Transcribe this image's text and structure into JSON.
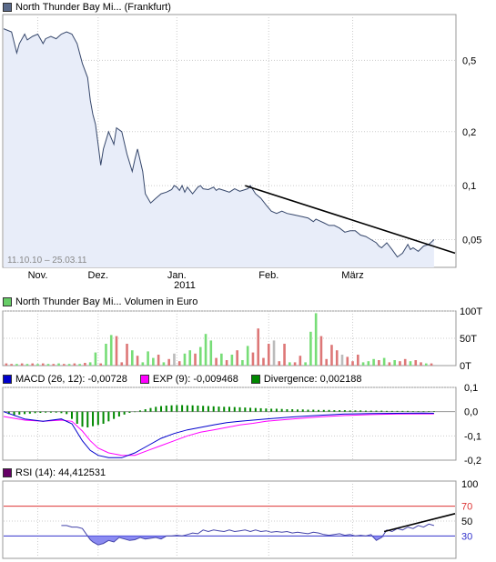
{
  "price_chart": {
    "legend_label": "North Thunder Bay Mi... (Frankfurt)",
    "legend_color": "#5a6a8a",
    "date_range": "11.10.10 – 25.03.11",
    "y_ticks": [
      "0,5",
      "0,2",
      "0,1",
      "0,05"
    ],
    "x_ticks": [
      "Nov.",
      "Dez.",
      "Jan.",
      "Feb.",
      "März"
    ],
    "year_label": "2011",
    "line_color": "#36476b",
    "fill_color": "#e8edf9"
  },
  "volume_chart": {
    "legend_label": "North Thunder Bay Mi... Volumen in Euro",
    "legend_color": "#66cc66",
    "y_ticks": [
      "100T",
      "50T",
      "0T"
    ],
    "up_color": "#77dd77",
    "down_color": "#dd7777",
    "flat_color": "#bbbbbb"
  },
  "macd_chart": {
    "macd_label": "MACD (26, 12): -0,00728",
    "exp_label": "EXP (9): -0,009468",
    "div_label": "Divergence: 0,002188",
    "macd_color": "#0000cc",
    "exp_color": "#ff00ff",
    "div_color": "#008800",
    "y_ticks": [
      "0,1",
      "0,0",
      "-0,1",
      "-0,2"
    ]
  },
  "rsi_chart": {
    "legend_label": "RSI (14): 44,412531",
    "legend_color": "#660066",
    "y_ticks": [
      "100",
      "70",
      "50",
      "30"
    ],
    "line_color": "#4444aa",
    "upper_line_color": "#dd3333",
    "lower_line_color": "#3333cc"
  },
  "chart_data": [
    {
      "type": "line",
      "title": "North Thunder Bay Mi... (Frankfurt)",
      "scale": "log",
      "x_range": [
        "11.10.10",
        "25.03.11"
      ],
      "ylim": [
        0.035,
        0.9
      ],
      "x": [
        0,
        3,
        5,
        6,
        8,
        9,
        11,
        13,
        15,
        16,
        18,
        20,
        22,
        24,
        26,
        28,
        30,
        32,
        33,
        34,
        35,
        36,
        37,
        38,
        40,
        42,
        43,
        45,
        47,
        49,
        50,
        51,
        53,
        54,
        56,
        58,
        60,
        62,
        64,
        65,
        66,
        67,
        68,
        69,
        70,
        72,
        74,
        75,
        76,
        78,
        80,
        81,
        82,
        84,
        86,
        88,
        90,
        92,
        93,
        94,
        96,
        98,
        100,
        102,
        104,
        106,
        108,
        110,
        112,
        114,
        116,
        118,
        119,
        120,
        122,
        124,
        126,
        128,
        130,
        132,
        134,
        136,
        138,
        140,
        142,
        143,
        144,
        146,
        148,
        150,
        152,
        154,
        155,
        156,
        158,
        160,
        162,
        164
      ],
      "y": [
        0.75,
        0.72,
        0.55,
        0.62,
        0.7,
        0.65,
        0.68,
        0.7,
        0.62,
        0.66,
        0.68,
        0.66,
        0.7,
        0.72,
        0.7,
        0.62,
        0.48,
        0.4,
        0.3,
        0.25,
        0.22,
        0.17,
        0.13,
        0.16,
        0.2,
        0.17,
        0.21,
        0.2,
        0.15,
        0.12,
        0.14,
        0.16,
        0.12,
        0.09,
        0.08,
        0.085,
        0.09,
        0.092,
        0.095,
        0.1,
        0.098,
        0.094,
        0.1,
        0.092,
        0.098,
        0.09,
        0.098,
        0.1,
        0.096,
        0.095,
        0.098,
        0.094,
        0.096,
        0.094,
        0.092,
        0.096,
        0.093,
        0.095,
        0.096,
        0.1,
        0.09,
        0.085,
        0.078,
        0.072,
        0.07,
        0.072,
        0.07,
        0.069,
        0.068,
        0.067,
        0.066,
        0.063,
        0.065,
        0.064,
        0.062,
        0.06,
        0.06,
        0.058,
        0.055,
        0.056,
        0.056,
        0.053,
        0.052,
        0.05,
        0.048,
        0.046,
        0.045,
        0.048,
        0.044,
        0.04,
        0.042,
        0.047,
        0.044,
        0.045,
        0.043,
        0.046,
        0.047,
        0.05
      ],
      "trendline": [
        [
          92,
          0.1
        ],
        [
          172,
          0.042
        ]
      ],
      "x_tick_labels": [
        "Nov.",
        "Dez.",
        "Jan.",
        "Feb.",
        "März"
      ],
      "x_tick_positions": [
        13,
        36,
        66,
        101,
        133
      ],
      "y_tick_labels": [
        "0,5",
        "0,2",
        "0,1",
        "0,05"
      ],
      "y_tick_values": [
        0.5,
        0.2,
        0.1,
        0.05
      ]
    },
    {
      "type": "bar",
      "title": "North Thunder Bay Mi... Volumen in Euro",
      "ylim": [
        0,
        100
      ],
      "y_tick_labels": [
        "100T",
        "50T",
        "0T"
      ],
      "bars": [
        {
          "x": 1,
          "v": 4,
          "c": "down"
        },
        {
          "x": 3,
          "v": 3,
          "c": "down"
        },
        {
          "x": 5,
          "v": 3,
          "c": "up"
        },
        {
          "x": 7,
          "v": 4,
          "c": "down"
        },
        {
          "x": 9,
          "v": 3,
          "c": "up"
        },
        {
          "x": 11,
          "v": 4,
          "c": "down"
        },
        {
          "x": 13,
          "v": 3,
          "c": "up"
        },
        {
          "x": 15,
          "v": 4,
          "c": "down"
        },
        {
          "x": 17,
          "v": 3,
          "c": "up"
        },
        {
          "x": 19,
          "v": 3,
          "c": "down"
        },
        {
          "x": 21,
          "v": 4,
          "c": "up"
        },
        {
          "x": 23,
          "v": 3,
          "c": "down"
        },
        {
          "x": 25,
          "v": 3,
          "c": "up"
        },
        {
          "x": 27,
          "v": 4,
          "c": "down"
        },
        {
          "x": 29,
          "v": 3,
          "c": "up"
        },
        {
          "x": 31,
          "v": 5,
          "c": "down"
        },
        {
          "x": 33,
          "v": 6,
          "c": "up"
        },
        {
          "x": 35,
          "v": 24,
          "c": "up"
        },
        {
          "x": 37,
          "v": 4,
          "c": "down"
        },
        {
          "x": 39,
          "v": 40,
          "c": "up"
        },
        {
          "x": 41,
          "v": 56,
          "c": "up"
        },
        {
          "x": 43,
          "v": 54,
          "c": "down"
        },
        {
          "x": 45,
          "v": 6,
          "c": "down"
        },
        {
          "x": 47,
          "v": 40,
          "c": "down"
        },
        {
          "x": 49,
          "v": 28,
          "c": "up"
        },
        {
          "x": 51,
          "v": 18,
          "c": "down"
        },
        {
          "x": 53,
          "v": 6,
          "c": "up"
        },
        {
          "x": 55,
          "v": 26,
          "c": "up"
        },
        {
          "x": 57,
          "v": 14,
          "c": "up"
        },
        {
          "x": 59,
          "v": 20,
          "c": "down"
        },
        {
          "x": 61,
          "v": 6,
          "c": "up"
        },
        {
          "x": 63,
          "v": 12,
          "c": "down"
        },
        {
          "x": 65,
          "v": 22,
          "c": "flat"
        },
        {
          "x": 67,
          "v": 8,
          "c": "down"
        },
        {
          "x": 69,
          "v": 22,
          "c": "up"
        },
        {
          "x": 71,
          "v": 28,
          "c": "up"
        },
        {
          "x": 73,
          "v": 22,
          "c": "down"
        },
        {
          "x": 75,
          "v": 34,
          "c": "up"
        },
        {
          "x": 77,
          "v": 58,
          "c": "up"
        },
        {
          "x": 79,
          "v": 46,
          "c": "up"
        },
        {
          "x": 81,
          "v": 14,
          "c": "down"
        },
        {
          "x": 83,
          "v": 22,
          "c": "up"
        },
        {
          "x": 85,
          "v": 10,
          "c": "down"
        },
        {
          "x": 87,
          "v": 20,
          "c": "up"
        },
        {
          "x": 89,
          "v": 28,
          "c": "down"
        },
        {
          "x": 91,
          "v": 10,
          "c": "up"
        },
        {
          "x": 93,
          "v": 36,
          "c": "up"
        },
        {
          "x": 95,
          "v": 24,
          "c": "down"
        },
        {
          "x": 97,
          "v": 68,
          "c": "down"
        },
        {
          "x": 99,
          "v": 14,
          "c": "down"
        },
        {
          "x": 101,
          "v": 40,
          "c": "down"
        },
        {
          "x": 103,
          "v": 46,
          "c": "flat"
        },
        {
          "x": 105,
          "v": 8,
          "c": "down"
        },
        {
          "x": 107,
          "v": 40,
          "c": "down"
        },
        {
          "x": 109,
          "v": 6,
          "c": "up"
        },
        {
          "x": 111,
          "v": 6,
          "c": "down"
        },
        {
          "x": 113,
          "v": 18,
          "c": "down"
        },
        {
          "x": 115,
          "v": 6,
          "c": "up"
        },
        {
          "x": 117,
          "v": 62,
          "c": "up"
        },
        {
          "x": 119,
          "v": 96,
          "c": "up"
        },
        {
          "x": 121,
          "v": 54,
          "c": "down"
        },
        {
          "x": 123,
          "v": 12,
          "c": "down"
        },
        {
          "x": 125,
          "v": 38,
          "c": "down"
        },
        {
          "x": 127,
          "v": 28,
          "c": "down"
        },
        {
          "x": 129,
          "v": 20,
          "c": "flat"
        },
        {
          "x": 131,
          "v": 16,
          "c": "down"
        },
        {
          "x": 133,
          "v": 8,
          "c": "down"
        },
        {
          "x": 135,
          "v": 20,
          "c": "down"
        },
        {
          "x": 137,
          "v": 6,
          "c": "up"
        },
        {
          "x": 139,
          "v": 8,
          "c": "up"
        },
        {
          "x": 141,
          "v": 12,
          "c": "up"
        },
        {
          "x": 143,
          "v": 10,
          "c": "down"
        },
        {
          "x": 145,
          "v": 14,
          "c": "up"
        },
        {
          "x": 147,
          "v": 6,
          "c": "down"
        },
        {
          "x": 149,
          "v": 10,
          "c": "up"
        },
        {
          "x": 151,
          "v": 8,
          "c": "down"
        },
        {
          "x": 153,
          "v": 12,
          "c": "down"
        },
        {
          "x": 155,
          "v": 8,
          "c": "up"
        },
        {
          "x": 157,
          "v": 10,
          "c": "down"
        },
        {
          "x": 159,
          "v": 6,
          "c": "down"
        },
        {
          "x": 161,
          "v": 4,
          "c": "up"
        },
        {
          "x": 163,
          "v": 4,
          "c": "down"
        }
      ]
    },
    {
      "type": "line",
      "title": "MACD (26, 12)",
      "ylim": [
        -0.2,
        0.1
      ],
      "series": [
        {
          "name": "MACD (26, 12)",
          "x": [
            0,
            8,
            15,
            22,
            26,
            30,
            33,
            36,
            40,
            45,
            50,
            55,
            60,
            65,
            70,
            75,
            80,
            85,
            90,
            95,
            100,
            110,
            120,
            130,
            140,
            150,
            160,
            164
          ],
          "y": [
            0,
            -0.03,
            -0.04,
            -0.03,
            -0.05,
            -0.12,
            -0.16,
            -0.18,
            -0.19,
            -0.19,
            -0.17,
            -0.14,
            -0.11,
            -0.09,
            -0.075,
            -0.065,
            -0.055,
            -0.045,
            -0.04,
            -0.035,
            -0.03,
            -0.022,
            -0.015,
            -0.01,
            -0.008,
            -0.007,
            -0.006,
            -0.007
          ]
        },
        {
          "name": "EXP (9)",
          "x": [
            0,
            8,
            15,
            22,
            26,
            30,
            33,
            36,
            40,
            45,
            50,
            55,
            60,
            65,
            70,
            75,
            80,
            85,
            90,
            95,
            100,
            110,
            120,
            130,
            140,
            150,
            160,
            164
          ],
          "y": [
            -0.02,
            -0.035,
            -0.04,
            -0.035,
            -0.04,
            -0.08,
            -0.12,
            -0.15,
            -0.17,
            -0.18,
            -0.18,
            -0.16,
            -0.14,
            -0.12,
            -0.1,
            -0.085,
            -0.075,
            -0.065,
            -0.055,
            -0.048,
            -0.04,
            -0.03,
            -0.022,
            -0.016,
            -0.012,
            -0.01,
            -0.009,
            -0.009
          ]
        },
        {
          "name": "Divergence",
          "type": "bar",
          "x": [
            2,
            4,
            6,
            8,
            10,
            12,
            14,
            16,
            18,
            20,
            22,
            24,
            26,
            28,
            30,
            32,
            34,
            36,
            38,
            40,
            42,
            44,
            46,
            48,
            50,
            52,
            54,
            56,
            58,
            60,
            62,
            64,
            66,
            68,
            70,
            72,
            74,
            76,
            78,
            80,
            82,
            84,
            86,
            88,
            90,
            92,
            94,
            96,
            98,
            100,
            102,
            104,
            106,
            108,
            110,
            112,
            114,
            116,
            118,
            120,
            122,
            124,
            126,
            128,
            130,
            132,
            134,
            136,
            138,
            140,
            142,
            144,
            146,
            148,
            150,
            152,
            154,
            156,
            158,
            160,
            162,
            164
          ],
          "y": [
            -0.01,
            -0.015,
            -0.012,
            -0.01,
            -0.008,
            -0.006,
            -0.005,
            -0.004,
            -0.004,
            -0.004,
            -0.006,
            -0.01,
            -0.03,
            -0.05,
            -0.062,
            -0.065,
            -0.06,
            -0.055,
            -0.05,
            -0.04,
            -0.03,
            -0.02,
            -0.012,
            -0.005,
            0.0,
            0.005,
            0.01,
            0.015,
            0.02,
            0.023,
            0.025,
            0.026,
            0.027,
            0.027,
            0.026,
            0.026,
            0.025,
            0.024,
            0.023,
            0.022,
            0.021,
            0.02,
            0.02,
            0.019,
            0.018,
            0.017,
            0.016,
            0.015,
            0.014,
            0.013,
            0.012,
            0.012,
            0.011,
            0.01,
            0.01,
            0.009,
            0.009,
            0.008,
            0.008,
            0.007,
            0.007,
            0.007,
            0.006,
            0.006,
            0.006,
            0.005,
            0.005,
            0.005,
            0.004,
            0.004,
            0.004,
            0.004,
            0.003,
            0.003,
            0.003,
            0.003,
            0.003,
            0.002,
            0.002,
            0.002,
            0.002,
            0.002
          ]
        }
      ]
    },
    {
      "type": "line",
      "title": "RSI (14)",
      "ylim": [
        0,
        100
      ],
      "levels": [
        70,
        30
      ],
      "x": [
        22,
        24,
        26,
        28,
        30,
        32,
        33,
        34,
        36,
        38,
        40,
        42,
        44,
        46,
        48,
        50,
        52,
        54,
        56,
        58,
        60,
        62,
        64,
        66,
        68,
        70,
        72,
        74,
        76,
        78,
        80,
        82,
        84,
        86,
        88,
        90,
        92,
        94,
        96,
        98,
        100,
        102,
        104,
        106,
        108,
        110,
        112,
        114,
        116,
        118,
        120,
        122,
        124,
        126,
        128,
        130,
        132,
        134,
        136,
        138,
        140,
        142,
        144,
        146,
        148,
        150,
        152,
        154,
        156,
        158,
        160,
        162,
        164
      ],
      "y": [
        44,
        44,
        42,
        42,
        40,
        30,
        25,
        22,
        18,
        20,
        24,
        22,
        28,
        26,
        24,
        25,
        28,
        26,
        27,
        28,
        26,
        30,
        30,
        31,
        30,
        32,
        34,
        33,
        38,
        36,
        38,
        37,
        36,
        38,
        36,
        37,
        38,
        36,
        38,
        36,
        37,
        35,
        36,
        35,
        36,
        34,
        35,
        34,
        33,
        35,
        34,
        32,
        31,
        32,
        33,
        31,
        32,
        30,
        31,
        30,
        32,
        24,
        28,
        38,
        36,
        40,
        38,
        42,
        40,
        44,
        42,
        46,
        44
      ],
      "trendline": [
        [
          145,
          36
        ],
        [
          172,
          60
        ]
      ]
    }
  ]
}
